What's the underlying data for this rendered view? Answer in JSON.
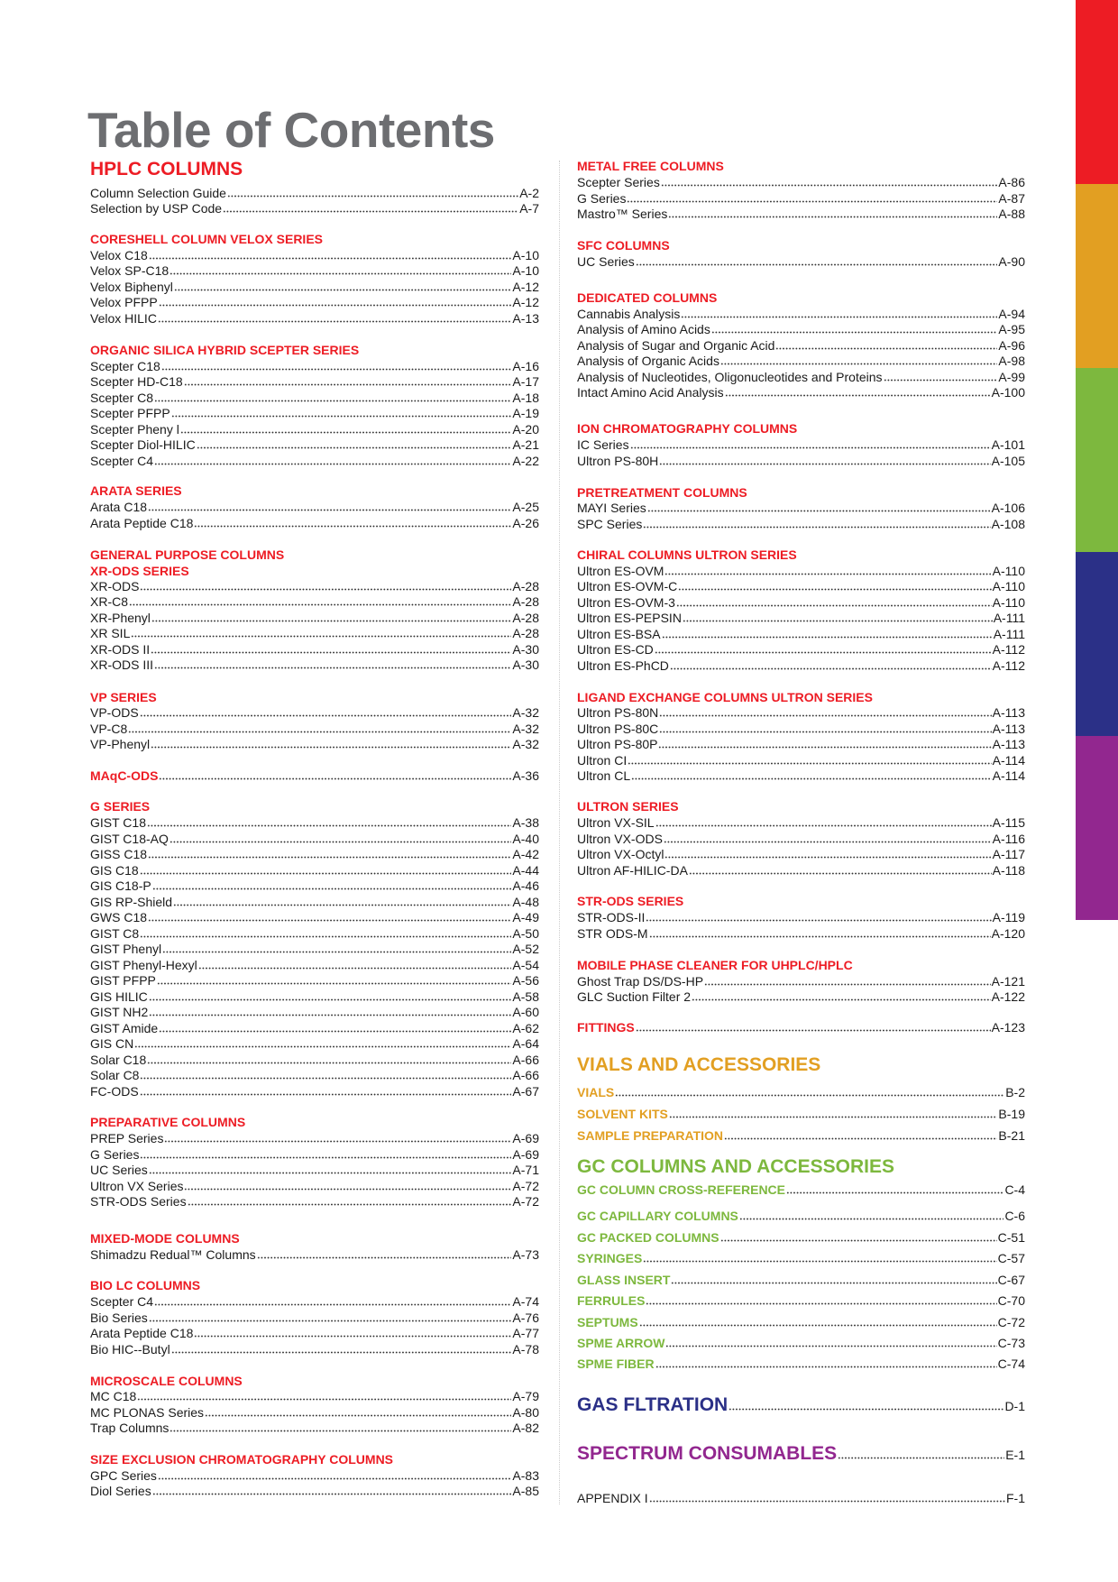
{
  "title": "Table of Contents",
  "colors": {
    "red": "#ed1c24",
    "orange": "#e29f22",
    "green": "#7db83e",
    "navy": "#2b3087",
    "purple": "#92278f",
    "title_gray": "#6d6e71"
  },
  "side_tabs": [
    "#ed1c24",
    "#e29f22",
    "#7db83e",
    "#2b3087",
    "#92278f"
  ],
  "left_column": [
    {
      "heading": "HPLC COLUMNS",
      "entries": [
        {
          "label": "Column Selection Guide",
          "page": "A-2"
        },
        {
          "label": "Selection by USP Code",
          "page": "A-7"
        }
      ]
    },
    {
      "heading": "CORESHELL COLUMN VELOX SERIES",
      "entries": [
        {
          "label": "Velox C18",
          "page": "A-10"
        },
        {
          "label": "Velox SP-C18",
          "page": "A-10"
        },
        {
          "label": "Velox Biphenyl",
          "page": "A-12"
        },
        {
          "label": "Velox PFPP",
          "page": "A-12"
        },
        {
          "label": "Velox HILIC",
          "page": "A-13"
        }
      ]
    },
    {
      "heading": "ORGANIC SILICA HYBRID SCEPTER SERIES",
      "entries": [
        {
          "label": "Scepter C18",
          "page": "A-16"
        },
        {
          "label": "Scepter HD-C18",
          "page": "A-17"
        },
        {
          "label": "Scepter C8",
          "page": "A-18"
        },
        {
          "label": "Scepter PFPP",
          "page": "A-19"
        },
        {
          "label": "Scepter Pheny l",
          "page": "A-20"
        },
        {
          "label": "Scepter Diol-HILIC",
          "page": "A-21"
        },
        {
          "label": "Scepter C4",
          "page": "A-22"
        }
      ]
    },
    {
      "heading": "ARATA SERIES",
      "entries": [
        {
          "label": "Arata C18",
          "page": "A-25"
        },
        {
          "label": "Arata Peptide C18",
          "page": "A-26"
        }
      ]
    },
    {
      "heading": "GENERAL PURPOSE COLUMNS",
      "subheading": "XR-ODS SERIES",
      "entries": [
        {
          "label": "XR-ODS",
          "page": "A-28"
        },
        {
          "label": "XR-C8",
          "page": "A-28"
        },
        {
          "label": "XR-Phenyl",
          "page": "A-28"
        },
        {
          "label": "XR SIL",
          "page": "A-28"
        },
        {
          "label": "XR-ODS II",
          "page": "A-30"
        },
        {
          "label": "XR-ODS III",
          "page": "A-30"
        }
      ]
    },
    {
      "heading": "VP SERIES",
      "entries": [
        {
          "label": "VP-ODS",
          "page": "A-32"
        },
        {
          "label": "VP-C8",
          "page": "A-32"
        },
        {
          "label": "VP-Phenyl",
          "page": "A-32"
        }
      ]
    },
    {
      "heading": "MAqC-ODS",
      "page": "A-36",
      "entries": []
    },
    {
      "heading": "G SERIES",
      "entries": [
        {
          "label": "GIST C18",
          "page": "A-38"
        },
        {
          "label": "GIST C18-AQ",
          "page": "A-40"
        },
        {
          "label": "GISS C18",
          "page": "A-42"
        },
        {
          "label": "GIS C18",
          "page": "A-44"
        },
        {
          "label": "GIS C18-P",
          "page": "A-46"
        },
        {
          "label": "GIS RP-Shield",
          "page": "A-48"
        },
        {
          "label": "GWS C18",
          "page": "A-49"
        },
        {
          "label": "GIST C8",
          "page": "A-50"
        },
        {
          "label": "GIST Phenyl",
          "page": "A-52"
        },
        {
          "label": "GIST Phenyl-Hexyl",
          "page": "A-54"
        },
        {
          "label": "GIST PFPP",
          "page": "A-56"
        },
        {
          "label": "GIS HILIC",
          "page": "A-58"
        },
        {
          "label": "GIST NH2",
          "page": "A-60"
        },
        {
          "label": "GIST Amide",
          "page": "A-62"
        },
        {
          "label": "GIS CN",
          "page": "A-64"
        },
        {
          "label": "Solar C18",
          "page": "A-66"
        },
        {
          "label": "Solar C8",
          "page": "A-66"
        },
        {
          "label": "FC-ODS",
          "page": "A-67"
        }
      ]
    },
    {
      "heading": "PREPARATIVE COLUMNS",
      "entries": [
        {
          "label": "PREP Series",
          "page": "A-69"
        },
        {
          "label": "G Series",
          "page": "A-69"
        },
        {
          "label": "UC Series",
          "page": "A-71"
        },
        {
          "label": "Ultron VX Series",
          "page": "A-72"
        },
        {
          "label": "STR-ODS Series",
          "page": "A-72"
        }
      ]
    },
    {
      "heading": "MIXED-MODE COLUMNS",
      "entries": [
        {
          "label": "Shimadzu Redual™ Columns",
          "page": "A-73"
        }
      ]
    },
    {
      "heading": "BIO LC COLUMNS",
      "entries": [
        {
          "label": "Scepter C4",
          "page": "A-74"
        },
        {
          "label": "Bio Series",
          "page": "A-76"
        },
        {
          "label": "Arata Peptide C18",
          "page": "A-77"
        },
        {
          "label": "Bio HIC--Butyl",
          "page": "A-78"
        }
      ]
    },
    {
      "heading": "MICROSCALE COLUMNS",
      "entries": [
        {
          "label": "MC C18",
          "page": "A-79"
        },
        {
          "label": "MC PLONAS Series",
          "page": "A-80"
        },
        {
          "label": "Trap Columns",
          "page": "A-82"
        }
      ]
    },
    {
      "heading": "SIZE EXCLUSION CHROMATOGRAPHY COLUMNS",
      "entries": [
        {
          "label": "GPC Series",
          "page": "A-83"
        },
        {
          "label": "Diol Series",
          "page": "A-85"
        }
      ]
    }
  ],
  "right_column": [
    {
      "heading": "METAL FREE COLUMNS",
      "entries": [
        {
          "label": "Scepter Series",
          "page": "A-86"
        },
        {
          "label": "G Series",
          "page": "A-87"
        },
        {
          "label": "Mastro™ Series",
          "page": "A-88"
        }
      ]
    },
    {
      "heading": "SFC COLUMNS",
      "entries": [
        {
          "label": "UC Series",
          "page": "A-90"
        }
      ]
    },
    {
      "heading": "DEDICATED COLUMNS",
      "entries": [
        {
          "label": "Cannabis Analysis",
          "page": "A-94"
        },
        {
          "label": "Analysis of Amino Acids",
          "page": "A-95"
        },
        {
          "label": "Analysis of Sugar and Organic Acid",
          "page": "A-96"
        },
        {
          "label": "Analysis of Organic Acids",
          "page": "A-98"
        },
        {
          "label": "Analysis of Nucleotides, Oligonucleotides and Proteins",
          "page": "A-99"
        },
        {
          "label": "Intact Amino Acid Analysis",
          "page": "A-100"
        }
      ]
    },
    {
      "heading": "ION CHROMATOGRAPHY COLUMNS",
      "entries": [
        {
          "label": "IC Series",
          "page": "A-101"
        },
        {
          "label": "Ultron PS-80H",
          "page": "A-105"
        }
      ]
    },
    {
      "heading": "PRETREATMENT COLUMNS",
      "entries": [
        {
          "label": "MAYI Series",
          "page": "A-106"
        },
        {
          "label": "SPC Series",
          "page": "A-108"
        }
      ]
    },
    {
      "heading": "CHIRAL COLUMNS ULTRON SERIES",
      "entries": [
        {
          "label": "Ultron ES-OVM",
          "page": "A-110"
        },
        {
          "label": "Ultron ES-OVM-C",
          "page": "A-110"
        },
        {
          "label": "Ultron ES-OVM-3",
          "page": "A-110"
        },
        {
          "label": "Ultron ES-PEPSIN",
          "page": "A-111"
        },
        {
          "label": "Ultron ES-BSA",
          "page": "A-111"
        },
        {
          "label": "Ultron ES-CD",
          "page": "A-112"
        },
        {
          "label": "Ultron ES-PhCD",
          "page": "A-112"
        }
      ]
    },
    {
      "heading": "LIGAND EXCHANGE COLUMNS ULTRON SERIES",
      "entries": [
        {
          "label": "Ultron PS-80N",
          "page": "A-113"
        },
        {
          "label": "Ultron PS-80C",
          "page": "A-113"
        },
        {
          "label": "Ultron PS-80P",
          "page": "A-113"
        },
        {
          "label": "Ultron CI",
          "page": "A-114"
        },
        {
          "label": "Ultron CL",
          "page": "A-114"
        }
      ]
    },
    {
      "heading": "ULTRON SERIES",
      "entries": [
        {
          "label": "Ultron VX-SIL",
          "page": "A-115"
        },
        {
          "label": "Ultron VX-ODS",
          "page": "A-116"
        },
        {
          "label": "Ultron VX-Octyl",
          "page": "A-117"
        },
        {
          "label": "Ultron AF-HILIC-DA",
          "page": "A-118"
        }
      ]
    },
    {
      "heading": "STR-ODS SERIES",
      "entries": [
        {
          "label": "STR-ODS-II",
          "page": "A-119"
        },
        {
          "label": "STR ODS-M",
          "page": "A-120"
        }
      ]
    },
    {
      "heading": "MOBILE PHASE CLEANER FOR UHPLC/HPLC",
      "entries": [
        {
          "label": "Ghost Trap DS/DS-HP",
          "page": "A-121"
        },
        {
          "label": "GLC Suction Filter 2",
          "page": "A-122"
        }
      ]
    },
    {
      "heading": "FITTINGS",
      "page": "A-123",
      "entries": []
    }
  ],
  "vials": {
    "heading": "VIALS AND ACCESSORIES",
    "color": "#e29f22",
    "entries": [
      {
        "label": "VIALS",
        "page": "B-2"
      },
      {
        "label": "SOLVENT KITS",
        "page": "B-19"
      },
      {
        "label": "SAMPLE PREPARATION",
        "page": "B-21"
      }
    ]
  },
  "gc": {
    "heading": "GC COLUMNS AND ACCESSORIES",
    "color": "#7db83e",
    "entries": [
      {
        "label": "GC COLUMN CROSS-REFERENCE",
        "page": "C-4"
      },
      {
        "label": "GC CAPILLARY COLUMNS",
        "page": "C-6"
      },
      {
        "label": "GC PACKED COLUMNS",
        "page": "C-51"
      },
      {
        "label": "SYRINGES",
        "page": "C-57"
      },
      {
        "label": "GLASS INSERT",
        "page": "C-67"
      },
      {
        "label": "FERRULES",
        "page": "C-70"
      },
      {
        "label": "SEPTUMS",
        "page": "C-72"
      },
      {
        "label": "SPME ARROW",
        "page": "C-73"
      },
      {
        "label": "SPME FIBER",
        "page": "C-74"
      }
    ]
  },
  "gas": {
    "heading": "GAS FLTRATION",
    "page": "D-1",
    "color": "#2b3087"
  },
  "spectrum": {
    "heading": "SPECTRUM CONSUMABLES",
    "page": "E-1",
    "color": "#92278f"
  },
  "appendix": {
    "label": "APPENDIX I",
    "page": "F-1"
  }
}
